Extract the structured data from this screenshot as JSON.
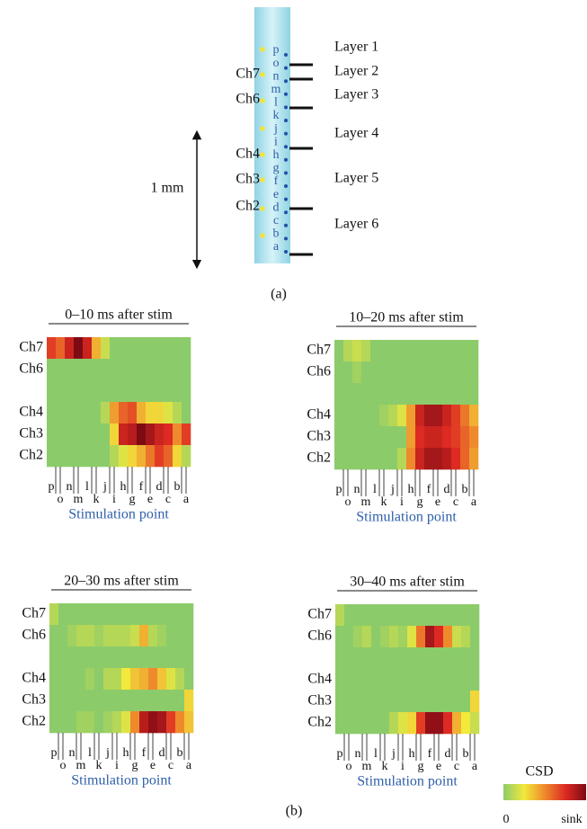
{
  "panel_a": {
    "label": "(a)",
    "scale": "1 mm",
    "layers": [
      "Layer 1",
      "Layer 2",
      "Layer 3",
      "Layer 4",
      "Layer 5",
      "Layer 6"
    ],
    "channels": [
      "Ch7",
      "Ch6",
      "Ch4",
      "Ch3",
      "Ch2"
    ],
    "contacts": [
      "p",
      "o",
      "n",
      "m",
      "l",
      "k",
      "j",
      "i",
      "h",
      "g",
      "f",
      "e",
      "d",
      "c",
      "b",
      "a"
    ]
  },
  "panel_b": {
    "label": "(b)",
    "x_label": "Stimulation point",
    "row_labels": [
      "Ch7",
      "Ch6",
      null,
      "Ch4",
      "Ch3",
      "Ch2"
    ],
    "columns": [
      "p",
      "o",
      "n",
      "m",
      "l",
      "k",
      "j",
      "i",
      "h",
      "g",
      "f",
      "e",
      "d",
      "c",
      "b",
      "a"
    ],
    "colorbar": {
      "title": "CSD",
      "min_label": "0",
      "max_label": "sink",
      "colors": [
        "#8ccb6a",
        "#f2e93c",
        "#ef8a2c",
        "#dd2a22",
        "#7e0a14"
      ]
    },
    "heatmaps": [
      {
        "title": "0–10 ms after stim",
        "values": [
          [
            0.7,
            0.6,
            0.8,
            1,
            0.8,
            0.4,
            0.15,
            0,
            0,
            0,
            0,
            0,
            0,
            0,
            0,
            0
          ],
          [
            0,
            0,
            0,
            0,
            0,
            0,
            0,
            0,
            0,
            0,
            0,
            0,
            0,
            0,
            0,
            0
          ],
          [
            0,
            0,
            0,
            0,
            0,
            0,
            0,
            0,
            0,
            0,
            0,
            0,
            0,
            0,
            0,
            0
          ],
          [
            0,
            0,
            0,
            0,
            0,
            0,
            0.1,
            0.45,
            0.6,
            0.65,
            0.4,
            0.3,
            0.3,
            0.2,
            0.1,
            0
          ],
          [
            0,
            0,
            0,
            0,
            0,
            0,
            0,
            0.3,
            0.8,
            0.85,
            1,
            0.9,
            0.8,
            0.75,
            0.5,
            0.7
          ],
          [
            0,
            0,
            0,
            0,
            0,
            0,
            0,
            0.1,
            0.2,
            0.3,
            0.4,
            0.55,
            0.7,
            0.6,
            0.3,
            0.1
          ]
        ]
      },
      {
        "title": "10–20 ms after stim",
        "values": [
          [
            0,
            0.1,
            0.15,
            0.1,
            0,
            0,
            0,
            0,
            0,
            0,
            0,
            0,
            0,
            0,
            0,
            0
          ],
          [
            0,
            0,
            0.05,
            0,
            0,
            0,
            0,
            0,
            0,
            0,
            0,
            0,
            0,
            0,
            0,
            0
          ],
          [
            0,
            0,
            0,
            0,
            0,
            0,
            0,
            0,
            0,
            0,
            0,
            0,
            0,
            0,
            0,
            0
          ],
          [
            0,
            0,
            0,
            0,
            0,
            0.05,
            0.1,
            0.2,
            0.45,
            0.8,
            0.9,
            0.9,
            0.8,
            0.7,
            0.55,
            0.4
          ],
          [
            0,
            0,
            0,
            0,
            0,
            0,
            0,
            0,
            0.45,
            0.75,
            0.8,
            0.8,
            0.75,
            0.7,
            0.6,
            0.5
          ],
          [
            0,
            0,
            0,
            0,
            0,
            0,
            0,
            0.1,
            0.5,
            0.8,
            0.9,
            0.9,
            0.85,
            0.75,
            0.6,
            0.45
          ]
        ]
      },
      {
        "title": "20–30 ms after stim",
        "values": [
          [
            0.1,
            0,
            0,
            0,
            0,
            0,
            0,
            0,
            0,
            0,
            0,
            0,
            0,
            0,
            0,
            0
          ],
          [
            0,
            0,
            0.05,
            0.1,
            0.1,
            0.05,
            0.1,
            0.1,
            0.1,
            0.15,
            0.4,
            0.1,
            0.05,
            0,
            0,
            0
          ],
          [
            0,
            0,
            0,
            0,
            0,
            0,
            0,
            0,
            0,
            0,
            0,
            0,
            0,
            0,
            0,
            0
          ],
          [
            0,
            0,
            0,
            0,
            0.05,
            0,
            0.1,
            0.1,
            0.25,
            0.35,
            0.4,
            0.5,
            0.35,
            0.2,
            0.1,
            0
          ],
          [
            0,
            0,
            0,
            0,
            0,
            0,
            0,
            0,
            0,
            0,
            0,
            0,
            0,
            0,
            0,
            0.3
          ],
          [
            0,
            0,
            0,
            0.05,
            0.05,
            0,
            0.05,
            0.1,
            0.2,
            0.5,
            0.85,
            0.95,
            0.9,
            0.7,
            0.5,
            0.35
          ]
        ]
      },
      {
        "title": "30–40 ms after stim",
        "values": [
          [
            0.1,
            0,
            0,
            0,
            0,
            0,
            0,
            0,
            0,
            0,
            0,
            0,
            0,
            0,
            0,
            0
          ],
          [
            0,
            0,
            0.05,
            0.1,
            0,
            0.05,
            0.1,
            0.05,
            0.2,
            0.55,
            0.9,
            0.75,
            0.5,
            0.15,
            0.1,
            0
          ],
          [
            0,
            0,
            0,
            0,
            0,
            0,
            0,
            0,
            0,
            0,
            0,
            0,
            0,
            0,
            0,
            0
          ],
          [
            0,
            0,
            0,
            0,
            0,
            0,
            0,
            0,
            0,
            0,
            0,
            0,
            0,
            0,
            0,
            0
          ],
          [
            0,
            0,
            0,
            0,
            0,
            0,
            0,
            0,
            0,
            0,
            0,
            0,
            0,
            0,
            0,
            0.3
          ],
          [
            0,
            0,
            0,
            0,
            0,
            0,
            0.1,
            0.2,
            0.3,
            0.7,
            0.95,
            0.95,
            0.75,
            0.4,
            0.25,
            0.15
          ]
        ]
      }
    ]
  }
}
